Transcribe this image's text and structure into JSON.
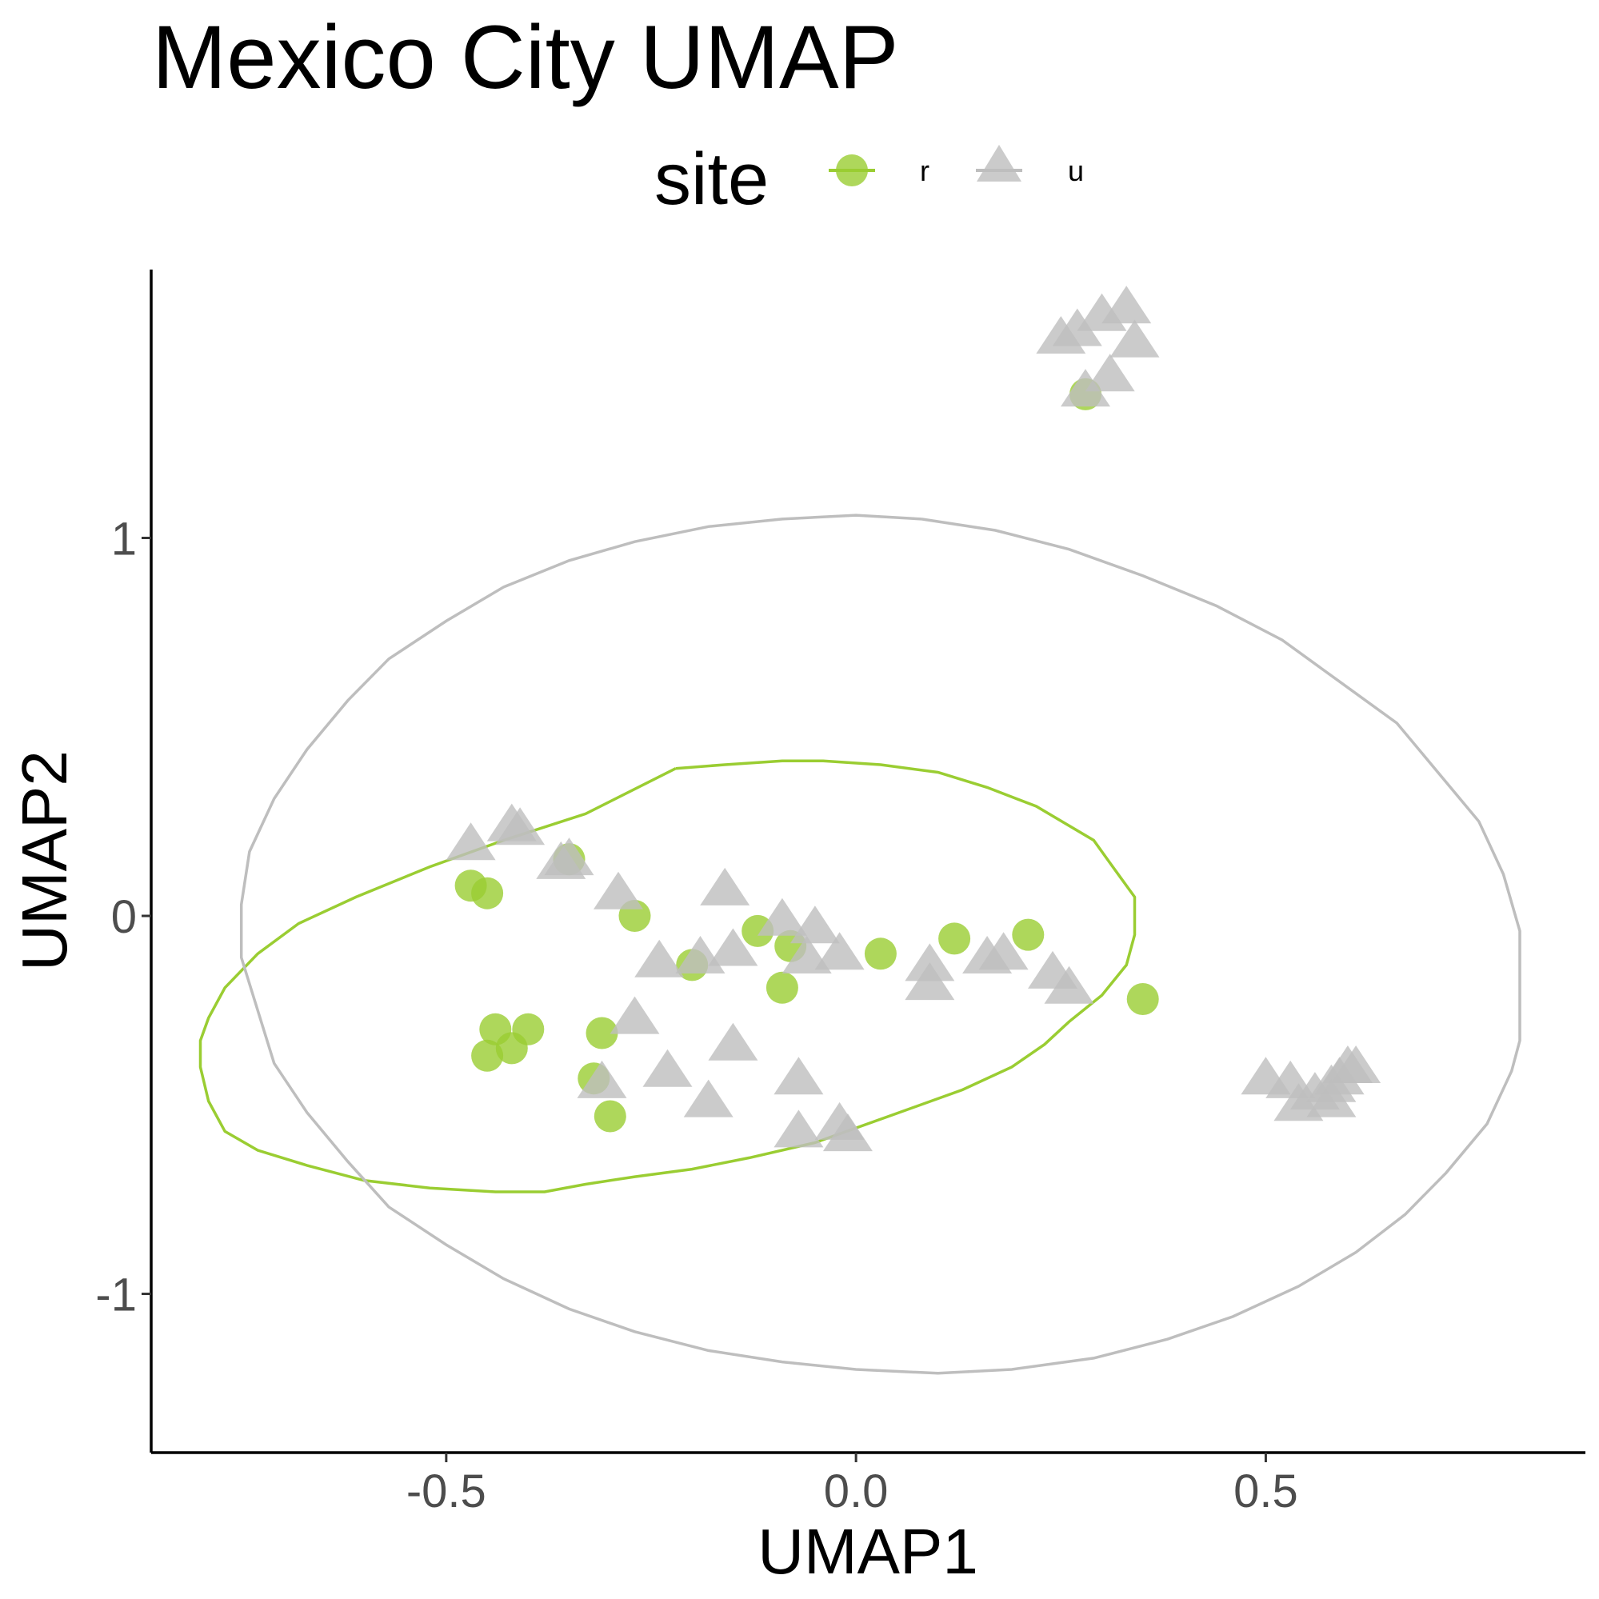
{
  "chart_data": {
    "type": "scatter",
    "title": "Mexico City UMAP",
    "xlabel": "UMAP1",
    "ylabel": "UMAP2",
    "xlim": [
      -0.86,
      0.89
    ],
    "ylim": [
      -1.42,
      1.71
    ],
    "x_ticks": [
      {
        "value": -0.5,
        "label": "-0.5"
      },
      {
        "value": 0.0,
        "label": "0.0"
      },
      {
        "value": 0.5,
        "label": "0.5"
      }
    ],
    "y_ticks": [
      {
        "value": -1,
        "label": "-1"
      },
      {
        "value": 0,
        "label": "0"
      },
      {
        "value": 1,
        "label": "1"
      }
    ],
    "grid": false,
    "legend": {
      "title": "site",
      "position": "top",
      "entries": [
        "r",
        "u"
      ]
    },
    "series": [
      {
        "name": "r",
        "marker": "circle",
        "color": "#9ACD32",
        "points": [
          {
            "x": -0.47,
            "y": 0.08
          },
          {
            "x": -0.45,
            "y": 0.06
          },
          {
            "x": -0.35,
            "y": 0.15
          },
          {
            "x": -0.27,
            "y": 0.0
          },
          {
            "x": -0.2,
            "y": -0.13
          },
          {
            "x": -0.12,
            "y": -0.04
          },
          {
            "x": -0.08,
            "y": -0.08
          },
          {
            "x": -0.09,
            "y": -0.19
          },
          {
            "x": 0.03,
            "y": -0.1
          },
          {
            "x": 0.12,
            "y": -0.06
          },
          {
            "x": 0.21,
            "y": -0.05
          },
          {
            "x": 0.35,
            "y": -0.22
          },
          {
            "x": -0.44,
            "y": -0.3
          },
          {
            "x": -0.4,
            "y": -0.3
          },
          {
            "x": -0.42,
            "y": -0.35
          },
          {
            "x": -0.45,
            "y": -0.37
          },
          {
            "x": -0.31,
            "y": -0.31
          },
          {
            "x": -0.32,
            "y": -0.43
          },
          {
            "x": -0.3,
            "y": -0.53
          },
          {
            "x": 0.28,
            "y": 1.38
          }
        ],
        "ellipse": {
          "path": [
            [
              -0.22,
              0.39
            ],
            [
              -0.16,
              0.4
            ],
            [
              -0.09,
              0.41
            ],
            [
              -0.04,
              0.41
            ],
            [
              0.03,
              0.4
            ],
            [
              0.1,
              0.38
            ],
            [
              0.16,
              0.34
            ],
            [
              0.22,
              0.29
            ],
            [
              0.29,
              0.2
            ],
            [
              0.31,
              0.14
            ],
            [
              0.34,
              0.05
            ],
            [
              0.34,
              0.0
            ],
            [
              0.34,
              -0.05
            ],
            [
              0.33,
              -0.13
            ],
            [
              0.3,
              -0.21
            ],
            [
              0.26,
              -0.28
            ],
            [
              0.23,
              -0.34
            ],
            [
              0.19,
              -0.4
            ],
            [
              0.13,
              -0.46
            ],
            [
              0.04,
              -0.53
            ],
            [
              -0.05,
              -0.6
            ],
            [
              -0.13,
              -0.64
            ],
            [
              -0.2,
              -0.67
            ],
            [
              -0.27,
              -0.69
            ],
            [
              -0.33,
              -0.71
            ],
            [
              -0.38,
              -0.73
            ],
            [
              -0.44,
              -0.73
            ],
            [
              -0.52,
              -0.72
            ],
            [
              -0.6,
              -0.7
            ],
            [
              -0.67,
              -0.66
            ],
            [
              -0.73,
              -0.62
            ],
            [
              -0.77,
              -0.57
            ],
            [
              -0.79,
              -0.49
            ],
            [
              -0.8,
              -0.4
            ],
            [
              -0.8,
              -0.33
            ],
            [
              -0.79,
              -0.27
            ],
            [
              -0.77,
              -0.19
            ],
            [
              -0.73,
              -0.1
            ],
            [
              -0.68,
              -0.02
            ],
            [
              -0.61,
              0.05
            ],
            [
              -0.52,
              0.13
            ],
            [
              -0.43,
              0.2
            ],
            [
              -0.33,
              0.27
            ],
            [
              -0.22,
              0.39
            ]
          ]
        }
      },
      {
        "name": "u",
        "marker": "triangle",
        "color": "#BEBEBE",
        "points": [
          {
            "x": -0.47,
            "y": 0.19
          },
          {
            "x": -0.42,
            "y": 0.24
          },
          {
            "x": -0.41,
            "y": 0.23
          },
          {
            "x": -0.36,
            "y": 0.14
          },
          {
            "x": -0.35,
            "y": 0.15
          },
          {
            "x": -0.29,
            "y": 0.06
          },
          {
            "x": -0.16,
            "y": 0.07
          },
          {
            "x": -0.09,
            "y": -0.01
          },
          {
            "x": -0.05,
            "y": -0.03
          },
          {
            "x": -0.15,
            "y": -0.09
          },
          {
            "x": -0.02,
            "y": -0.1
          },
          {
            "x": -0.06,
            "y": -0.11
          },
          {
            "x": -0.19,
            "y": -0.11
          },
          {
            "x": -0.24,
            "y": -0.12
          },
          {
            "x": 0.09,
            "y": -0.13
          },
          {
            "x": 0.09,
            "y": -0.18
          },
          {
            "x": 0.16,
            "y": -0.11
          },
          {
            "x": 0.18,
            "y": -0.1
          },
          {
            "x": 0.24,
            "y": -0.15
          },
          {
            "x": 0.26,
            "y": -0.19
          },
          {
            "x": -0.27,
            "y": -0.27
          },
          {
            "x": -0.15,
            "y": -0.34
          },
          {
            "x": -0.23,
            "y": -0.41
          },
          {
            "x": -0.31,
            "y": -0.44
          },
          {
            "x": -0.07,
            "y": -0.43
          },
          {
            "x": -0.18,
            "y": -0.49
          },
          {
            "x": -0.07,
            "y": -0.57
          },
          {
            "x": -0.02,
            "y": -0.55
          },
          {
            "x": -0.01,
            "y": -0.58
          },
          {
            "x": 0.25,
            "y": 1.53
          },
          {
            "x": 0.27,
            "y": 1.55
          },
          {
            "x": 0.3,
            "y": 1.59
          },
          {
            "x": 0.33,
            "y": 1.61
          },
          {
            "x": 0.34,
            "y": 1.52
          },
          {
            "x": 0.31,
            "y": 1.43
          },
          {
            "x": 0.28,
            "y": 1.39
          },
          {
            "x": 0.5,
            "y": -0.43
          },
          {
            "x": 0.53,
            "y": -0.44
          },
          {
            "x": 0.56,
            "y": -0.47
          },
          {
            "x": 0.58,
            "y": -0.45
          },
          {
            "x": 0.59,
            "y": -0.43
          },
          {
            "x": 0.6,
            "y": -0.4
          },
          {
            "x": 0.61,
            "y": -0.4
          },
          {
            "x": 0.58,
            "y": -0.49
          },
          {
            "x": 0.54,
            "y": -0.5
          }
        ],
        "ellipse": {
          "path": [
            [
              0.08,
              1.05
            ],
            [
              0.0,
              1.06
            ],
            [
              -0.09,
              1.05
            ],
            [
              -0.18,
              1.03
            ],
            [
              -0.27,
              0.99
            ],
            [
              -0.35,
              0.94
            ],
            [
              -0.43,
              0.87
            ],
            [
              -0.5,
              0.78
            ],
            [
              -0.57,
              0.68
            ],
            [
              -0.62,
              0.57
            ],
            [
              -0.67,
              0.44
            ],
            [
              -0.71,
              0.31
            ],
            [
              -0.74,
              0.17
            ],
            [
              -0.75,
              0.03
            ],
            [
              -0.75,
              -0.11
            ],
            [
              -0.73,
              -0.25
            ],
            [
              -0.71,
              -0.39
            ],
            [
              -0.67,
              -0.52
            ],
            [
              -0.62,
              -0.65
            ],
            [
              -0.57,
              -0.77
            ],
            [
              -0.5,
              -0.87
            ],
            [
              -0.43,
              -0.96
            ],
            [
              -0.35,
              -1.04
            ],
            [
              -0.27,
              -1.1
            ],
            [
              -0.18,
              -1.15
            ],
            [
              -0.09,
              -1.18
            ],
            [
              0.0,
              -1.2
            ],
            [
              0.1,
              -1.21
            ],
            [
              0.19,
              -1.2
            ],
            [
              0.29,
              -1.17
            ],
            [
              0.38,
              -1.12
            ],
            [
              0.46,
              -1.06
            ],
            [
              0.54,
              -0.98
            ],
            [
              0.61,
              -0.89
            ],
            [
              0.67,
              -0.79
            ],
            [
              0.72,
              -0.68
            ],
            [
              0.77,
              -0.55
            ],
            [
              0.8,
              -0.41
            ],
            [
              0.81,
              -0.33
            ],
            [
              0.81,
              -0.18
            ],
            [
              0.81,
              -0.04
            ],
            [
              0.79,
              0.11
            ],
            [
              0.76,
              0.25
            ],
            [
              0.71,
              0.38
            ],
            [
              0.66,
              0.51
            ],
            [
              0.59,
              0.62
            ],
            [
              0.52,
              0.73
            ],
            [
              0.44,
              0.82
            ],
            [
              0.35,
              0.9
            ],
            [
              0.26,
              0.97
            ],
            [
              0.17,
              1.02
            ],
            [
              0.08,
              1.05
            ]
          ]
        }
      }
    ]
  }
}
